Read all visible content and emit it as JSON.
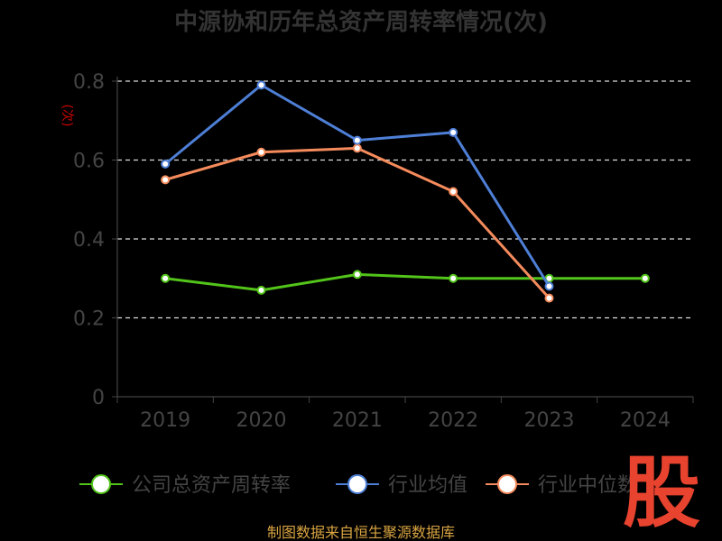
{
  "chart_data": {
    "type": "line",
    "title": "中源协和历年总资产周转率情况(次)",
    "ylabel": "(次)",
    "categories": [
      "2019",
      "2020",
      "2021",
      "2022",
      "2023",
      "2024"
    ],
    "y_ticks": [
      "0",
      "0.2",
      "0.4",
      "0.6",
      "0.8"
    ],
    "ylim": [
      0,
      0.8
    ],
    "grid": true,
    "legend_position": "bottom",
    "series": [
      {
        "name": "公司总资产周转率",
        "color": "#52c41a",
        "values": [
          0.3,
          0.27,
          0.31,
          0.3,
          0.3,
          0.3
        ]
      },
      {
        "name": "行业均值",
        "color": "#4e7fd6",
        "values": [
          0.59,
          0.79,
          0.65,
          0.67,
          0.28,
          null
        ]
      },
      {
        "name": "行业中位数",
        "color": "#f58b5c",
        "values": [
          0.55,
          0.62,
          0.63,
          0.52,
          0.25,
          null
        ]
      }
    ]
  },
  "source_text": "制图数据来自恒生聚源数据库",
  "logo_text": "股"
}
